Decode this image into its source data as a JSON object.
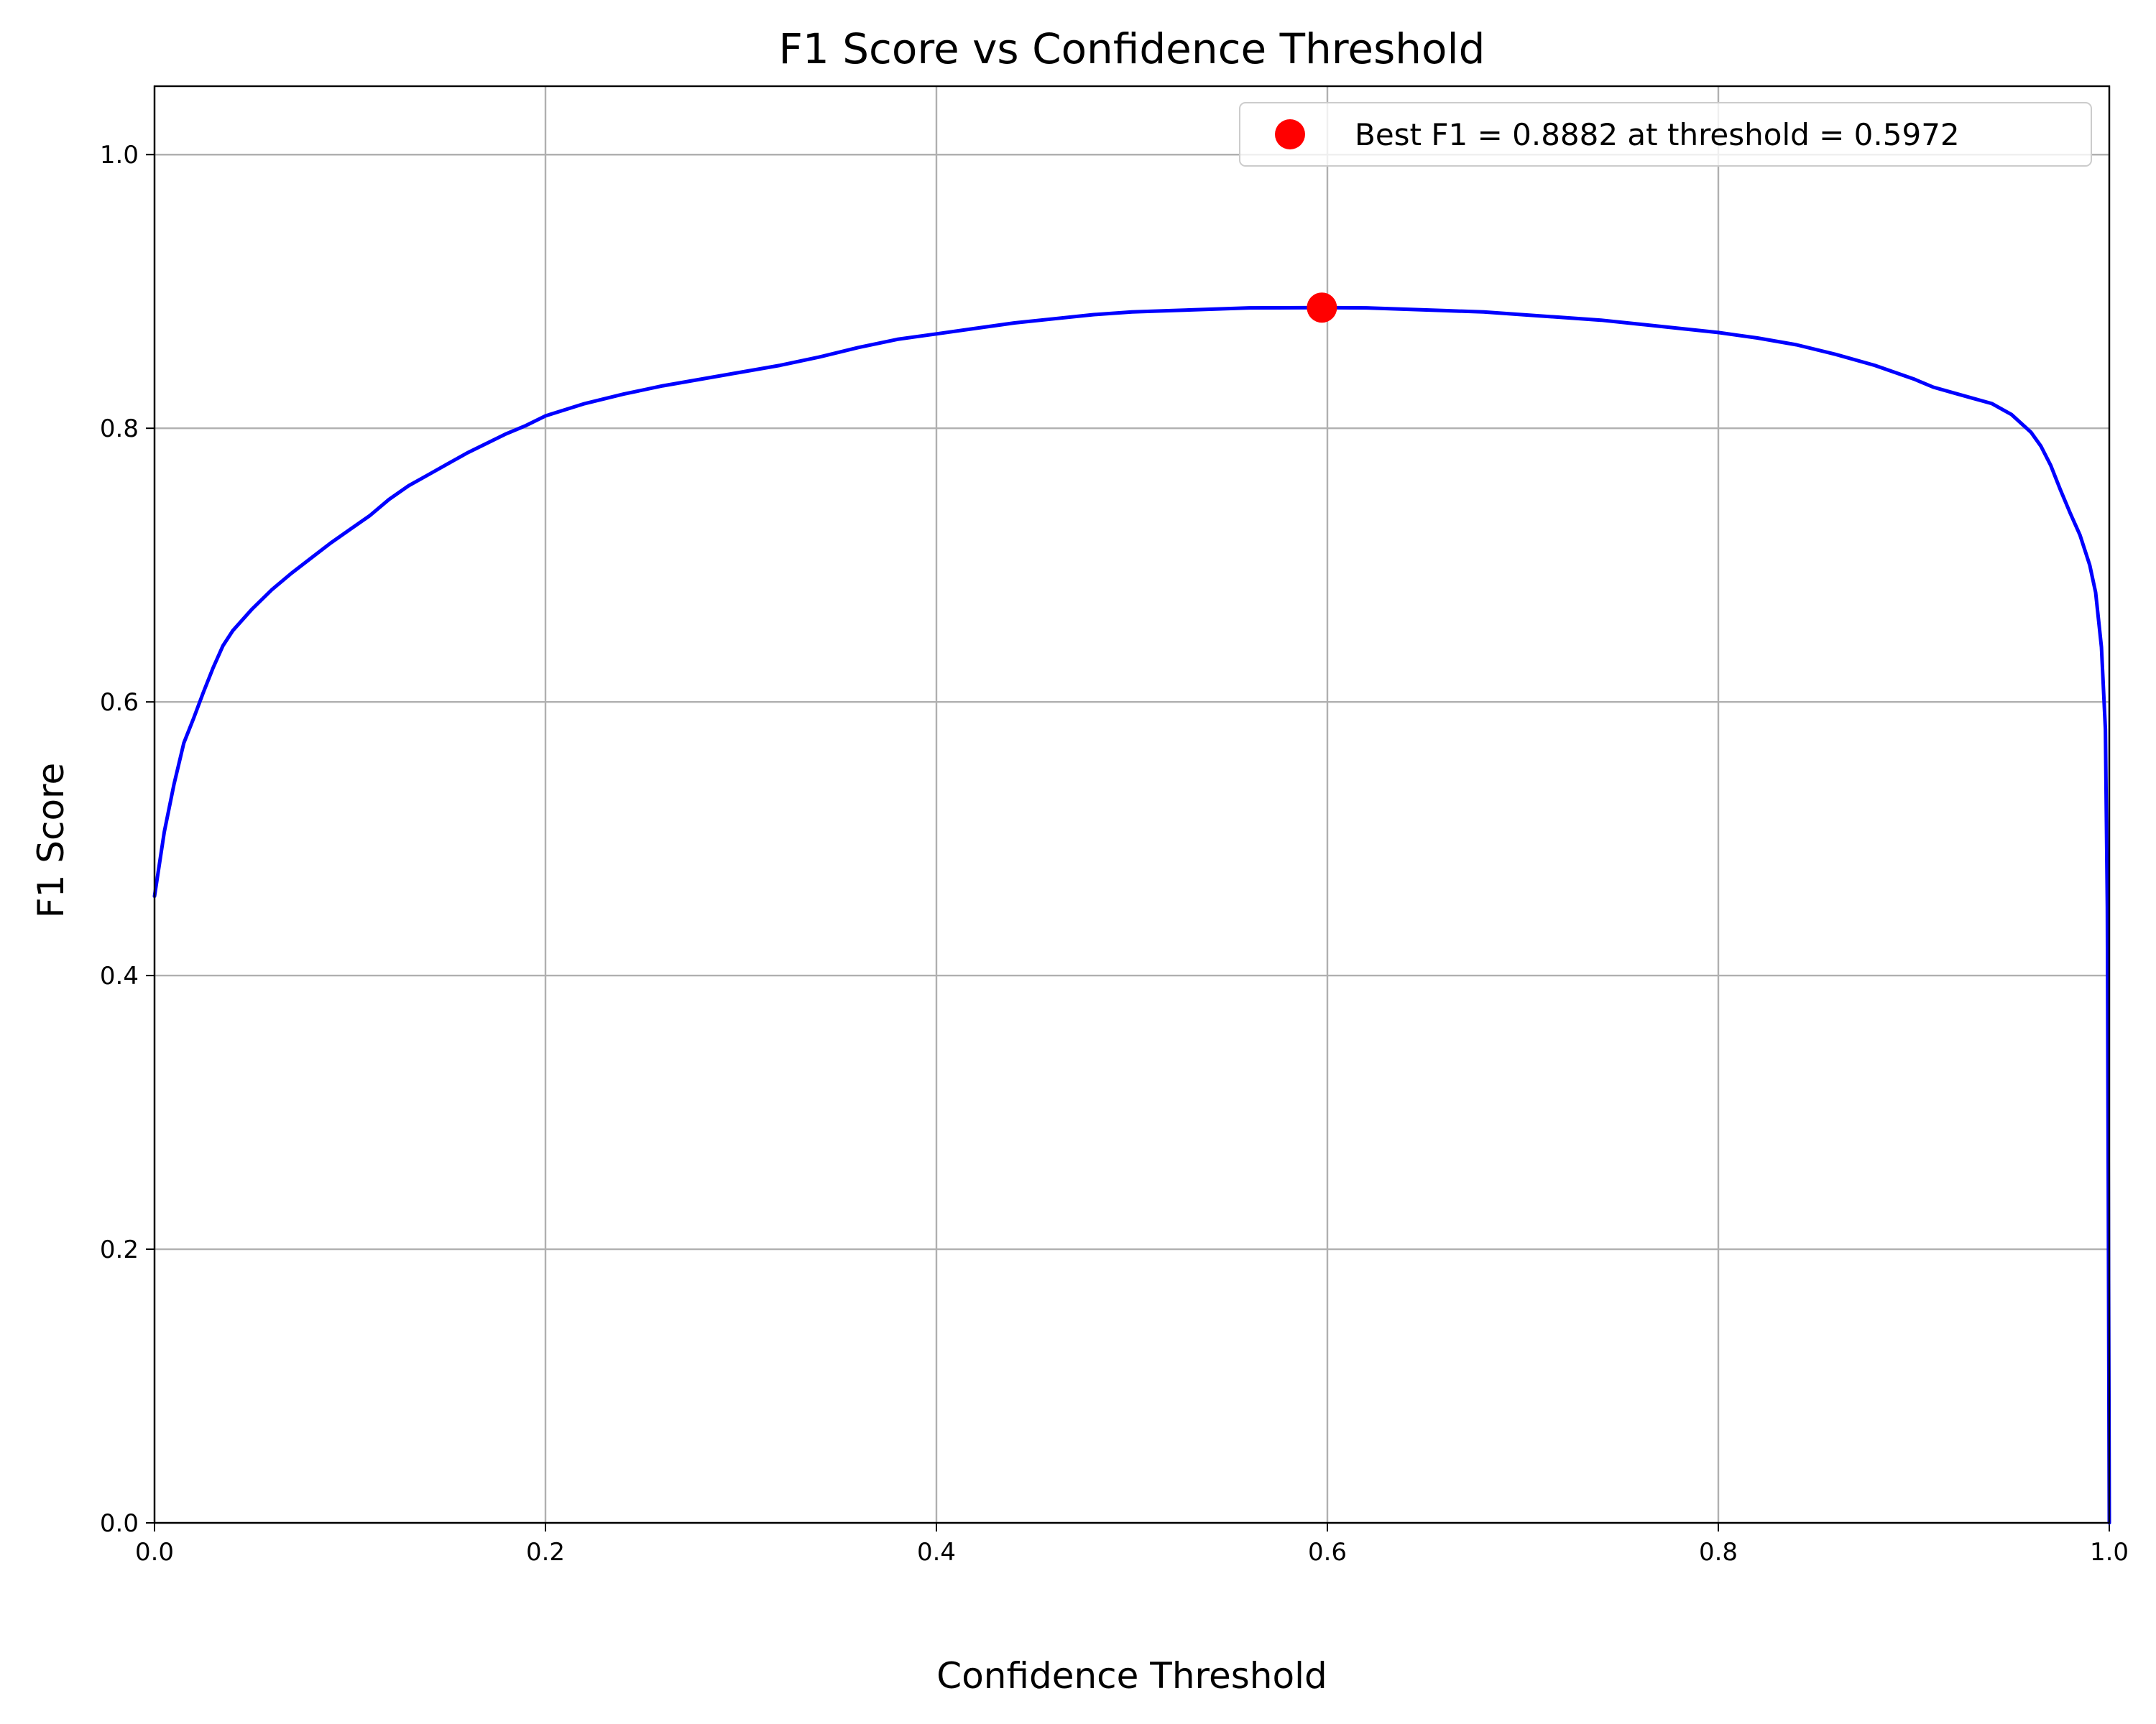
{
  "chart_data": {
    "type": "line",
    "title": "F1 Score vs Confidence Threshold",
    "xlabel": "Confidence Threshold",
    "ylabel": "F1 Score",
    "xlim": [
      0.0,
      1.0
    ],
    "ylim": [
      0.0,
      1.05
    ],
    "x_ticks": [
      "0.0",
      "0.2",
      "0.4",
      "0.6",
      "0.8",
      "1.0"
    ],
    "y_ticks": [
      "0.0",
      "0.2",
      "0.4",
      "0.6",
      "0.8",
      "1.0"
    ],
    "grid": true,
    "legend": {
      "placement": "upper right",
      "entries": [
        "Best F1 = 0.8882 at threshold = 0.5972"
      ]
    },
    "line_color": "#0000ff",
    "marker_color": "#ff0000",
    "series": [
      {
        "x": [
          0.0,
          0.005,
          0.01,
          0.015,
          0.02,
          0.025,
          0.03,
          0.035,
          0.04,
          0.05,
          0.06,
          0.07,
          0.08,
          0.09,
          0.1,
          0.11,
          0.12,
          0.13,
          0.14,
          0.15,
          0.16,
          0.17,
          0.18,
          0.19,
          0.2,
          0.22,
          0.24,
          0.26,
          0.28,
          0.3,
          0.32,
          0.34,
          0.36,
          0.38,
          0.4,
          0.42,
          0.44,
          0.46,
          0.48,
          0.5,
          0.52,
          0.54,
          0.56,
          0.5972,
          0.62,
          0.64,
          0.66,
          0.68,
          0.7,
          0.72,
          0.74,
          0.76,
          0.78,
          0.8,
          0.82,
          0.84,
          0.86,
          0.88,
          0.9,
          0.91,
          0.92,
          0.93,
          0.94,
          0.95,
          0.96,
          0.965,
          0.97,
          0.975,
          0.98,
          0.985,
          0.99,
          0.993,
          0.996,
          0.998,
          0.999,
          0.9995,
          1.0
        ],
        "y": [
          0.458,
          0.505,
          0.54,
          0.57,
          0.588,
          0.607,
          0.625,
          0.641,
          0.652,
          0.668,
          0.682,
          0.694,
          0.705,
          0.716,
          0.726,
          0.736,
          0.748,
          0.758,
          0.766,
          0.774,
          0.782,
          0.789,
          0.796,
          0.802,
          0.809,
          0.818,
          0.825,
          0.831,
          0.836,
          0.841,
          0.846,
          0.852,
          0.859,
          0.865,
          0.869,
          0.873,
          0.877,
          0.88,
          0.883,
          0.885,
          0.886,
          0.887,
          0.888,
          0.8882,
          0.888,
          0.887,
          0.886,
          0.885,
          0.883,
          0.881,
          0.879,
          0.876,
          0.873,
          0.87,
          0.866,
          0.861,
          0.854,
          0.846,
          0.836,
          0.83,
          0.826,
          0.822,
          0.818,
          0.81,
          0.797,
          0.787,
          0.773,
          0.755,
          0.738,
          0.722,
          0.7,
          0.68,
          0.64,
          0.58,
          0.45,
          0.25,
          0.0
        ]
      }
    ],
    "best_point": {
      "x": 0.5972,
      "y": 0.8882
    }
  }
}
